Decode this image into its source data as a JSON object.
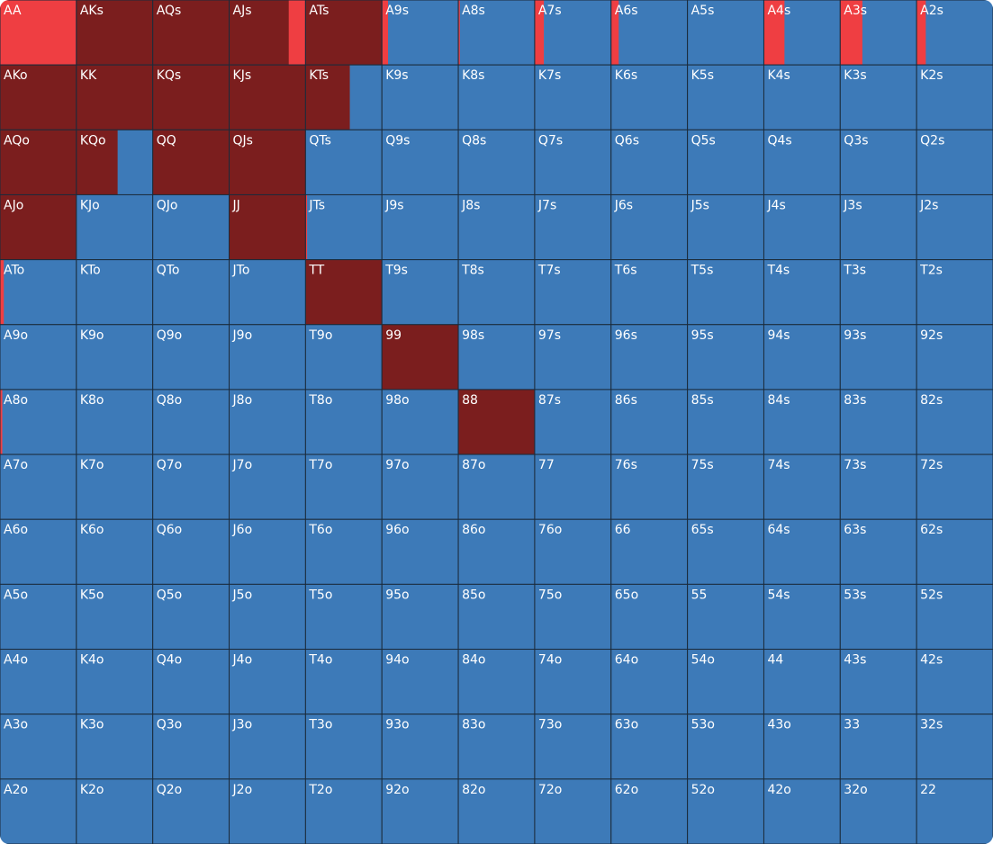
{
  "grid": {
    "colors": [
      "#7b1e1e",
      "#ef3e42",
      "#3d7ab8"
    ],
    "labels": [
      [
        "AA",
        "AKs",
        "AQs",
        "AJs",
        "ATs",
        "A9s",
        "A8s",
        "A7s",
        "A6s",
        "A5s",
        "A4s",
        "A3s",
        "A2s"
      ],
      [
        "AKo",
        "KK",
        "KQs",
        "KJs",
        "KTs",
        "K9s",
        "K8s",
        "K7s",
        "K6s",
        "K5s",
        "K4s",
        "K3s",
        "K2s"
      ],
      [
        "AQo",
        "KQo",
        "QQ",
        "QJs",
        "QTs",
        "Q9s",
        "Q8s",
        "Q7s",
        "Q6s",
        "Q5s",
        "Q4s",
        "Q3s",
        "Q2s"
      ],
      [
        "AJo",
        "KJo",
        "QJo",
        "JJ",
        "JTs",
        "J9s",
        "J8s",
        "J7s",
        "J6s",
        "J5s",
        "J4s",
        "J3s",
        "J2s"
      ],
      [
        "ATo",
        "KTo",
        "QTo",
        "JTo",
        "TT",
        "T9s",
        "T8s",
        "T7s",
        "T6s",
        "T5s",
        "T4s",
        "T3s",
        "T2s"
      ],
      [
        "A9o",
        "K9o",
        "Q9o",
        "J9o",
        "T9o",
        "99",
        "98s",
        "97s",
        "96s",
        "95s",
        "94s",
        "93s",
        "92s"
      ],
      [
        "A8o",
        "K8o",
        "Q8o",
        "J8o",
        "T8o",
        "98o",
        "88",
        "87s",
        "86s",
        "85s",
        "84s",
        "83s",
        "82s"
      ],
      [
        "A7o",
        "K7o",
        "Q7o",
        "J7o",
        "T7o",
        "97o",
        "87o",
        "77",
        "76s",
        "75s",
        "74s",
        "73s",
        "72s"
      ],
      [
        "A6o",
        "K6o",
        "Q6o",
        "J6o",
        "T6o",
        "96o",
        "86o",
        "76o",
        "66",
        "65s",
        "64s",
        "63s",
        "62s"
      ],
      [
        "A5o",
        "K5o",
        "Q5o",
        "J5o",
        "T5o",
        "95o",
        "85o",
        "75o",
        "65o",
        "55",
        "54s",
        "53s",
        "52s"
      ],
      [
        "A4o",
        "K4o",
        "Q4o",
        "J4o",
        "T4o",
        "94o",
        "84o",
        "74o",
        "64o",
        "54o",
        "44",
        "43s",
        "42s"
      ],
      [
        "A3o",
        "K3o",
        "Q3o",
        "J3o",
        "T3o",
        "93o",
        "83o",
        "73o",
        "63o",
        "53o",
        "43o",
        "33",
        "32s"
      ],
      [
        "A2o",
        "K2o",
        "Q2o",
        "J2o",
        "T2o",
        "92o",
        "82o",
        "72o",
        "62o",
        "52o",
        "42o",
        "32o",
        "22"
      ]
    ],
    "freq": [
      [
        [
          0,
          100,
          0
        ],
        [
          100,
          0,
          0
        ],
        [
          100,
          0,
          0
        ],
        [
          78,
          22,
          0
        ],
        [
          100,
          0,
          0
        ],
        [
          0,
          8,
          92
        ],
        [
          0,
          2,
          98
        ],
        [
          0,
          12,
          88
        ],
        [
          0,
          10,
          90
        ],
        [
          0,
          0,
          100
        ],
        [
          0,
          27,
          73
        ],
        [
          0,
          29,
          71
        ],
        [
          0,
          12,
          88
        ]
      ],
      [
        [
          100,
          0,
          0
        ],
        [
          100,
          0,
          0
        ],
        [
          100,
          0,
          0
        ],
        [
          100,
          0,
          0
        ],
        [
          58,
          0,
          42
        ],
        [
          0,
          0,
          100
        ],
        [
          0,
          0,
          100
        ],
        [
          0,
          0,
          100
        ],
        [
          0,
          0,
          100
        ],
        [
          0,
          0,
          100
        ],
        [
          0,
          0,
          100
        ],
        [
          0,
          0,
          100
        ],
        [
          0,
          0,
          100
        ]
      ],
      [
        [
          100,
          0,
          0
        ],
        [
          54,
          0,
          46
        ],
        [
          100,
          0,
          0
        ],
        [
          100,
          0,
          0
        ],
        [
          0,
          0,
          100
        ],
        [
          0,
          0,
          100
        ],
        [
          0,
          0,
          100
        ],
        [
          0,
          0,
          100
        ],
        [
          0,
          0,
          100
        ],
        [
          0,
          0,
          100
        ],
        [
          0,
          0,
          100
        ],
        [
          0,
          0,
          100
        ],
        [
          0,
          0,
          100
        ]
      ],
      [
        [
          100,
          0,
          0
        ],
        [
          0,
          0,
          100
        ],
        [
          0,
          0,
          100
        ],
        [
          100,
          0,
          0
        ],
        [
          0,
          2,
          98
        ],
        [
          0,
          0,
          100
        ],
        [
          0,
          0,
          100
        ],
        [
          0,
          0,
          100
        ],
        [
          0,
          0,
          100
        ],
        [
          0,
          0,
          100
        ],
        [
          0,
          0,
          100
        ],
        [
          0,
          0,
          100
        ],
        [
          0,
          0,
          100
        ]
      ],
      [
        [
          0,
          5,
          95
        ],
        [
          0,
          0,
          100
        ],
        [
          0,
          0,
          100
        ],
        [
          0,
          0,
          100
        ],
        [
          100,
          0,
          0
        ],
        [
          0,
          0,
          100
        ],
        [
          0,
          0,
          100
        ],
        [
          0,
          0,
          100
        ],
        [
          0,
          0,
          100
        ],
        [
          0,
          0,
          100
        ],
        [
          0,
          0,
          100
        ],
        [
          0,
          0,
          100
        ],
        [
          0,
          0,
          100
        ]
      ],
      [
        [
          0,
          0,
          100
        ],
        [
          0,
          0,
          100
        ],
        [
          0,
          0,
          100
        ],
        [
          0,
          0,
          100
        ],
        [
          0,
          0,
          100
        ],
        [
          100,
          0,
          0
        ],
        [
          0,
          0,
          100
        ],
        [
          0,
          0,
          100
        ],
        [
          0,
          0,
          100
        ],
        [
          0,
          0,
          100
        ],
        [
          0,
          0,
          100
        ],
        [
          0,
          0,
          100
        ],
        [
          0,
          0,
          100
        ]
      ],
      [
        [
          0,
          3,
          97
        ],
        [
          0,
          0,
          100
        ],
        [
          0,
          0,
          100
        ],
        [
          0,
          0,
          100
        ],
        [
          0,
          0,
          100
        ],
        [
          0,
          0,
          100
        ],
        [
          100,
          0,
          0
        ],
        [
          0,
          0,
          100
        ],
        [
          0,
          0,
          100
        ],
        [
          0,
          0,
          100
        ],
        [
          0,
          0,
          100
        ],
        [
          0,
          0,
          100
        ],
        [
          0,
          0,
          100
        ]
      ],
      [
        [
          0,
          0,
          100
        ],
        [
          0,
          0,
          100
        ],
        [
          0,
          0,
          100
        ],
        [
          0,
          0,
          100
        ],
        [
          0,
          0,
          100
        ],
        [
          0,
          0,
          100
        ],
        [
          0,
          0,
          100
        ],
        [
          0,
          0,
          100
        ],
        [
          0,
          0,
          100
        ],
        [
          0,
          0,
          100
        ],
        [
          0,
          0,
          100
        ],
        [
          0,
          0,
          100
        ],
        [
          0,
          0,
          100
        ]
      ],
      [
        [
          0,
          0,
          100
        ],
        [
          0,
          0,
          100
        ],
        [
          0,
          0,
          100
        ],
        [
          0,
          0,
          100
        ],
        [
          0,
          0,
          100
        ],
        [
          0,
          0,
          100
        ],
        [
          0,
          0,
          100
        ],
        [
          0,
          0,
          100
        ],
        [
          0,
          0,
          100
        ],
        [
          0,
          0,
          100
        ],
        [
          0,
          0,
          100
        ],
        [
          0,
          0,
          100
        ],
        [
          0,
          0,
          100
        ]
      ],
      [
        [
          0,
          0,
          100
        ],
        [
          0,
          0,
          100
        ],
        [
          0,
          0,
          100
        ],
        [
          0,
          0,
          100
        ],
        [
          0,
          0,
          100
        ],
        [
          0,
          0,
          100
        ],
        [
          0,
          0,
          100
        ],
        [
          0,
          0,
          100
        ],
        [
          0,
          0,
          100
        ],
        [
          0,
          0,
          100
        ],
        [
          0,
          0,
          100
        ],
        [
          0,
          0,
          100
        ],
        [
          0,
          0,
          100
        ]
      ],
      [
        [
          0,
          0,
          100
        ],
        [
          0,
          0,
          100
        ],
        [
          0,
          0,
          100
        ],
        [
          0,
          0,
          100
        ],
        [
          0,
          0,
          100
        ],
        [
          0,
          0,
          100
        ],
        [
          0,
          0,
          100
        ],
        [
          0,
          0,
          100
        ],
        [
          0,
          0,
          100
        ],
        [
          0,
          0,
          100
        ],
        [
          0,
          0,
          100
        ],
        [
          0,
          0,
          100
        ],
        [
          0,
          0,
          100
        ]
      ],
      [
        [
          0,
          0,
          100
        ],
        [
          0,
          0,
          100
        ],
        [
          0,
          0,
          100
        ],
        [
          0,
          0,
          100
        ],
        [
          0,
          0,
          100
        ],
        [
          0,
          0,
          100
        ],
        [
          0,
          0,
          100
        ],
        [
          0,
          0,
          100
        ],
        [
          0,
          0,
          100
        ],
        [
          0,
          0,
          100
        ],
        [
          0,
          0,
          100
        ],
        [
          0,
          0,
          100
        ],
        [
          0,
          0,
          100
        ]
      ],
      [
        [
          0,
          0,
          100
        ],
        [
          0,
          0,
          100
        ],
        [
          0,
          0,
          100
        ],
        [
          0,
          0,
          100
        ],
        [
          0,
          0,
          100
        ],
        [
          0,
          0,
          100
        ],
        [
          0,
          0,
          100
        ],
        [
          0,
          0,
          100
        ],
        [
          0,
          0,
          100
        ],
        [
          0,
          0,
          100
        ],
        [
          0,
          0,
          100
        ],
        [
          0,
          0,
          100
        ],
        [
          0,
          0,
          100
        ]
      ]
    ]
  }
}
